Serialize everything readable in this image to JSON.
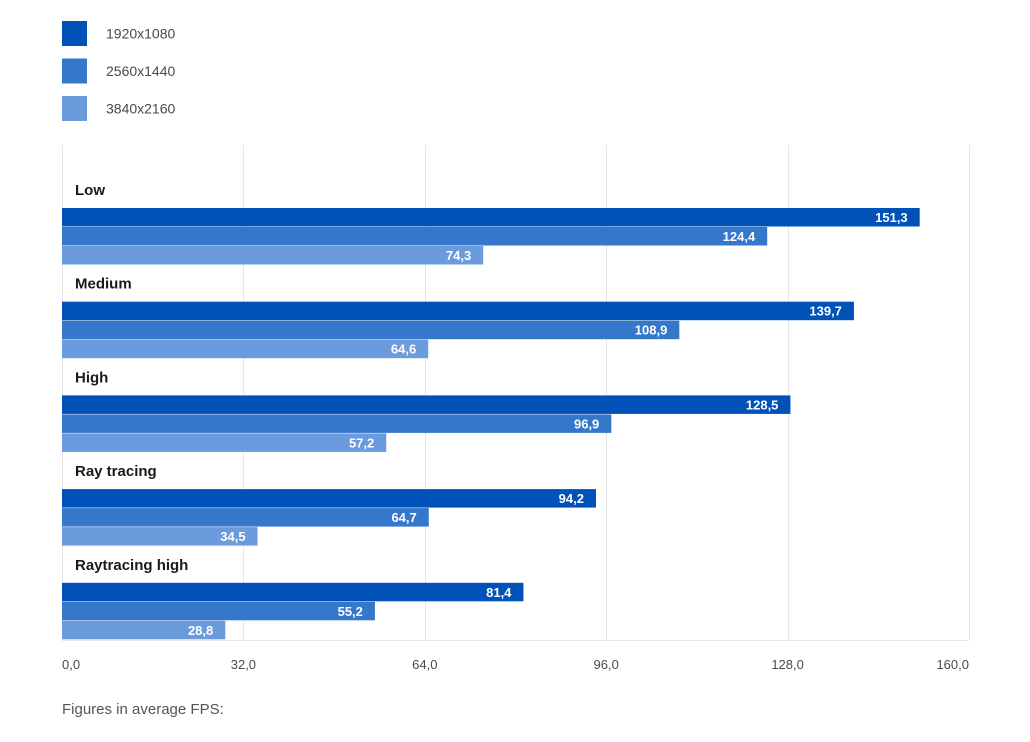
{
  "chart_data": {
    "type": "bar",
    "orientation": "horizontal",
    "categories": [
      "Low",
      "Medium",
      "High",
      "Ray tracing",
      "Raytracing high"
    ],
    "series": [
      {
        "name": "1920x1080",
        "color": "#0052b8",
        "values": [
          151.3,
          139.7,
          128.5,
          94.2,
          81.4
        ],
        "labels": [
          "151,3",
          "139,7",
          "128,5",
          "94,2",
          "81,4"
        ]
      },
      {
        "name": "2560x1440",
        "color": "#3577ca",
        "values": [
          124.4,
          108.9,
          96.9,
          64.7,
          55.2
        ],
        "labels": [
          "124,4",
          "108,9",
          "96,9",
          "64,7",
          "55,2"
        ]
      },
      {
        "name": "3840x2160",
        "color": "#6b9bdc",
        "values": [
          74.3,
          64.6,
          57.2,
          34.5,
          28.8
        ],
        "labels": [
          "74,3",
          "64,6",
          "57,2",
          "34,5",
          "28,8"
        ]
      }
    ],
    "xlim": [
      0,
      160
    ],
    "ticks": [
      0,
      32,
      64,
      96,
      128,
      160
    ],
    "tick_labels": [
      "0,0",
      "32,0",
      "64,0",
      "96,0",
      "128,0",
      "160,0"
    ],
    "grid": true,
    "legend_position": "top-left"
  },
  "footnote": "Figures in average FPS:"
}
